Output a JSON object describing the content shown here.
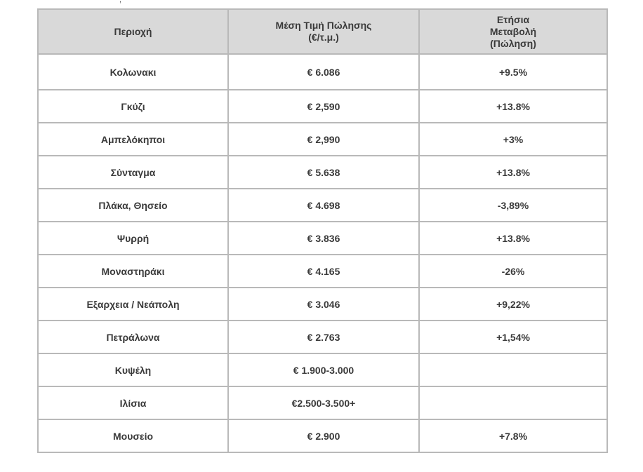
{
  "table": {
    "headers": {
      "area": "Περιοχή",
      "price": [
        "Μέση Τιμή Πώλησης",
        "(€/τ.μ.)"
      ],
      "change": [
        "Ετήσια",
        "Μεταβολή",
        "(Πώληση)"
      ]
    },
    "rows": [
      {
        "area": "Κολωνακι",
        "price": "€ 6.086",
        "change": "+9.5%"
      },
      {
        "area": "Γκύζι",
        "price": "€ 2,590",
        "change": "+13.8%"
      },
      {
        "area": "Αμπελόκηποι",
        "price": "€ 2,990",
        "change": "+3%"
      },
      {
        "area": "Σύνταγμα",
        "price": "€ 5.638",
        "change": "+13.8%"
      },
      {
        "area": "Πλάκα, Θησείο",
        "price": "€ 4.698",
        "change": "-3,89%"
      },
      {
        "area": "Ψυρρή",
        "price": "€ 3.836",
        "change": "+13.8%"
      },
      {
        "area": "Μοναστηράκι",
        "price": "€ 4.165",
        "change": "-26%"
      },
      {
        "area": "Εξαρχεια / Νεάπολη",
        "price": "€ 3.046",
        "change": "+9,22%"
      },
      {
        "area": "Πετράλωνα",
        "price": "€ 2.763",
        "change": "+1,54%"
      },
      {
        "area": "Κυψέλη",
        "price": "€ 1.900-3.000",
        "change": ""
      },
      {
        "area": "Ιλίσια",
        "price": "€2.500-3.500+",
        "change": ""
      },
      {
        "area": "Μουσείο",
        "price": "€ 2.900",
        "change": "+7.8%"
      }
    ]
  }
}
